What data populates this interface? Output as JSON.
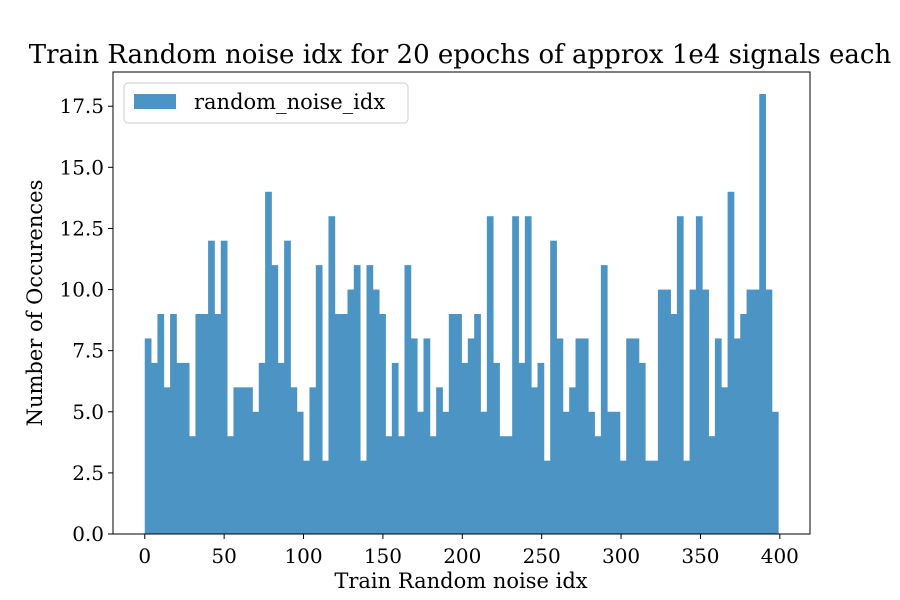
{
  "chart_data": {
    "type": "bar",
    "title": "Train Random noise idx for 20 epochs of approx 1e4 signals each",
    "xlabel": "Train Random noise idx",
    "ylabel": "Number of Occurences",
    "xlim": [
      -20,
      419
    ],
    "ylim": [
      0,
      18.9
    ],
    "bin_range": [
      0,
      399
    ],
    "x_ticks": [
      0,
      50,
      100,
      150,
      200,
      250,
      300,
      350,
      400
    ],
    "x_tick_labels": [
      "0",
      "50",
      "100",
      "150",
      "200",
      "250",
      "300",
      "350",
      "400"
    ],
    "y_ticks": [
      0,
      2.5,
      5,
      7.5,
      10,
      12.5,
      15,
      17.5
    ],
    "y_tick_labels": [
      "0.0",
      "2.5",
      "5.0",
      "7.5",
      "10.0",
      "12.5",
      "15.0",
      "17.5"
    ],
    "grid": false,
    "legend": {
      "position": "upper-left",
      "entries": [
        "random_noise_idx"
      ]
    },
    "series": [
      {
        "name": "random_noise_idx",
        "color": "#4c94c4",
        "values": [
          8,
          7,
          9,
          6,
          9,
          7,
          7,
          4,
          9,
          9,
          12,
          9,
          12,
          4,
          6,
          6,
          6,
          5,
          7,
          14,
          11,
          7,
          12,
          6,
          5,
          3,
          6,
          11,
          3,
          13,
          9,
          9,
          10,
          11,
          3,
          11,
          10,
          9,
          4,
          7,
          4,
          11,
          8,
          5,
          8,
          4,
          6,
          5,
          9,
          9,
          7,
          8,
          9,
          5,
          13,
          7,
          4,
          4,
          13,
          7,
          13,
          6,
          7,
          3,
          12,
          8,
          5,
          6,
          8,
          8,
          5,
          4,
          11,
          5,
          5,
          3,
          8,
          8,
          7,
          3,
          3,
          10,
          10,
          9,
          13,
          3,
          10,
          13,
          10,
          4,
          8,
          6,
          14,
          8,
          9,
          10,
          10,
          18,
          10,
          5
        ]
      }
    ]
  }
}
